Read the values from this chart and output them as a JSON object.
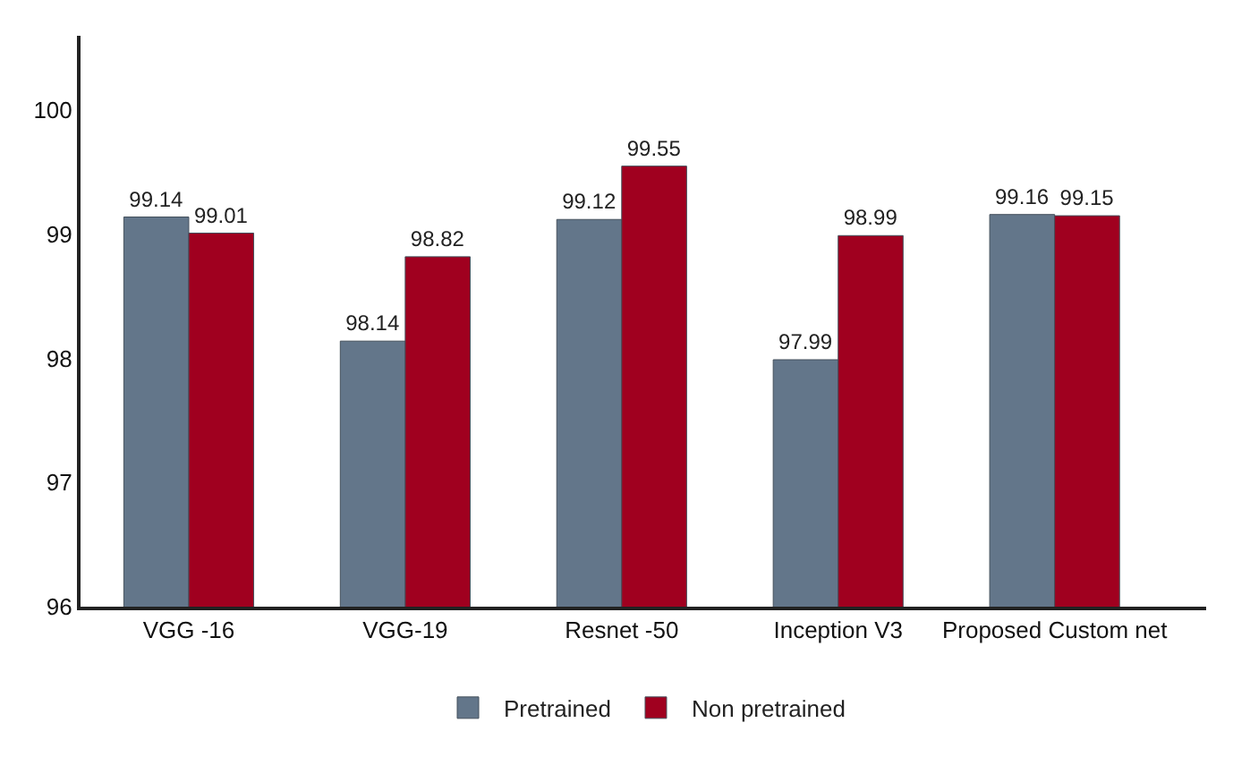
{
  "chart_data": {
    "type": "bar",
    "categories": [
      "VGG -16",
      "VGG-19",
      "Resnet -50",
      "Inception V3",
      "Proposed Custom net"
    ],
    "series": [
      {
        "name": "Pretrained",
        "color": "#63768a",
        "values": [
          99.14,
          98.14,
          99.12,
          97.99,
          99.16
        ]
      },
      {
        "name": "Non pretrained",
        "color": "#a0001f",
        "values": [
          99.01,
          98.82,
          99.55,
          98.99,
          99.15
        ]
      }
    ],
    "ylim": [
      96,
      100.6
    ],
    "yticks": [
      96,
      97,
      98,
      99,
      100
    ],
    "data_labels": true,
    "grid": false,
    "legend": "bottom"
  }
}
